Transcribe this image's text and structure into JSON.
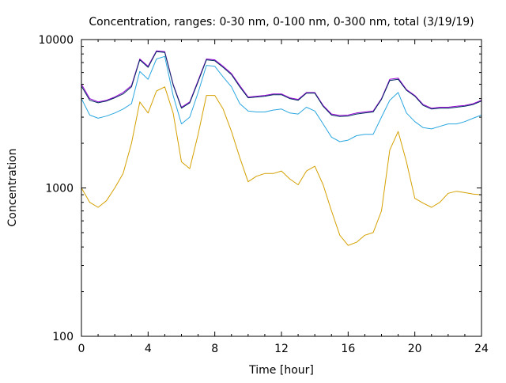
{
  "chart_data": {
    "type": "line",
    "title": "Concentration, ranges: 0-30 nm, 0-100 nm, 0-300 nm, total (3/19/19)",
    "xlabel": "Time [hour]",
    "ylabel": "Concentration",
    "xlim": [
      0,
      24
    ],
    "ylim": [
      100,
      10000
    ],
    "yscale": "log",
    "grid": false,
    "legend": "none",
    "x_ticks": [
      0,
      4,
      8,
      12,
      16,
      20,
      24
    ],
    "x_tick_labels": [
      "0",
      "4",
      "8",
      "12",
      "16",
      "20",
      "24"
    ],
    "y_ticks": [
      100,
      1000,
      10000
    ],
    "y_tick_labels": [
      "100",
      "1000",
      "10000"
    ],
    "x": [
      0,
      0.5,
      1,
      1.5,
      2,
      2.5,
      3,
      3.5,
      4,
      4.5,
      5,
      5.5,
      6,
      6.5,
      7,
      7.5,
      8,
      8.5,
      9,
      9.5,
      10,
      10.5,
      11,
      11.5,
      12,
      12.5,
      13,
      13.5,
      14,
      14.5,
      15,
      15.5,
      16,
      16.5,
      17,
      17.5,
      18,
      18.5,
      19,
      19.5,
      20,
      20.5,
      21,
      21.5,
      22,
      22.5,
      23,
      23.5,
      24
    ],
    "series": [
      {
        "color": "#d4a000",
        "values": [
          1000,
          800,
          740,
          820,
          1000,
          1250,
          2000,
          3800,
          3200,
          4500,
          4800,
          3200,
          1500,
          1350,
          2300,
          4200,
          4200,
          3400,
          2400,
          1600,
          1100,
          1200,
          1250,
          1250,
          1300,
          1150,
          1050,
          1300,
          1400,
          1050,
          700,
          480,
          410,
          430,
          480,
          500,
          700,
          1800,
          2400,
          1500,
          850,
          790,
          740,
          800,
          920,
          950,
          930,
          910,
          900
        ]
      },
      {
        "color": "#2aa6df",
        "values": [
          4000,
          3100,
          2950,
          3050,
          3200,
          3400,
          3700,
          6100,
          5400,
          7400,
          7700,
          4200,
          2700,
          3000,
          4400,
          6700,
          6600,
          5600,
          4800,
          3700,
          3300,
          3250,
          3250,
          3350,
          3400,
          3200,
          3150,
          3500,
          3300,
          2700,
          2200,
          2050,
          2100,
          2250,
          2300,
          2300,
          3000,
          3900,
          4400,
          3200,
          2800,
          2550,
          2500,
          2600,
          2700,
          2700,
          2800,
          2950,
          3100
        ]
      },
      {
        "color": "#9400d3",
        "values": [
          5000,
          4000,
          3800,
          3900,
          4100,
          4400,
          4900,
          7400,
          6600,
          8400,
          8300,
          5000,
          3500,
          3800,
          5300,
          7400,
          7300,
          6600,
          5900,
          4900,
          4100,
          4150,
          4200,
          4300,
          4300,
          4050,
          3950,
          4400,
          4400,
          3600,
          3150,
          3080,
          3100,
          3200,
          3250,
          3300,
          4000,
          5400,
          5500,
          4600,
          4200,
          3650,
          3450,
          3500,
          3500,
          3550,
          3600,
          3700,
          3900
        ]
      },
      {
        "color": "#003060",
        "values": [
          4850,
          3900,
          3750,
          3850,
          4050,
          4300,
          4800,
          7300,
          6500,
          8300,
          8200,
          4950,
          3450,
          3750,
          5200,
          7300,
          7200,
          6500,
          5800,
          4800,
          4050,
          4100,
          4150,
          4250,
          4250,
          4000,
          3900,
          4350,
          4350,
          3550,
          3100,
          3030,
          3050,
          3150,
          3200,
          3250,
          3950,
          5300,
          5400,
          4550,
          4150,
          3600,
          3400,
          3450,
          3450,
          3500,
          3550,
          3650,
          3850
        ]
      }
    ]
  }
}
